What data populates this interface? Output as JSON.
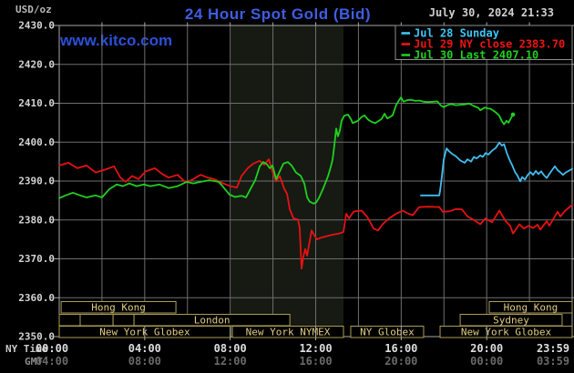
{
  "header": {
    "title": "24 Hour Spot Gold (Bid)",
    "datetime": "July 30, 2024 21:33",
    "watermark": "www.kitco.com"
  },
  "axis": {
    "unit_label": "USD/oz",
    "ny_row_label": "NY Time",
    "gmt_row_label": "GMT",
    "y_tick_labels": [
      "2430.0",
      "2420.0",
      "2410.0",
      "2400.0",
      "2390.0",
      "2380.0",
      "2370.0",
      "2360.0",
      "2350.0"
    ],
    "y_max": 2430,
    "y_min": 2350,
    "x_ticks": [
      {
        "hour": 0,
        "ny": "00:00",
        "gmt": "04:00"
      },
      {
        "hour": 4,
        "ny": "04:00",
        "gmt": "08:00"
      },
      {
        "hour": 8,
        "ny": "08:00",
        "gmt": "12:00"
      },
      {
        "hour": 12,
        "ny": "12:00",
        "gmt": "16:00"
      },
      {
        "hour": 16,
        "ny": "16:00",
        "gmt": "20:00"
      },
      {
        "hour": 20,
        "ny": "20:00",
        "gmt": "00:00"
      },
      {
        "hour": 23.983,
        "ny": "23:59",
        "gmt": "03:59"
      }
    ]
  },
  "legend": {
    "items": [
      {
        "label": "Jul 28 Sunday",
        "color": "#3ec6f5"
      },
      {
        "label": "Jul 29 NY close 2383.70",
        "color": "#f01414"
      },
      {
        "label": "Jul 30 Last 2407.10",
        "color": "#1fd11f"
      }
    ]
  },
  "sessions": {
    "rows": [
      {
        "boxes": [
          {
            "label": "Hong Kong",
            "start": 0.09,
            "end": 5.46
          },
          {
            "label": "Hong Kong",
            "start": 20.12,
            "end": 24
          }
        ]
      },
      {
        "boxes": [
          {
            "label": "",
            "start": 0,
            "end": 0.98
          },
          {
            "label": "",
            "start": 0.98,
            "end": 2.52
          },
          {
            "label": "",
            "start": 2.52,
            "end": 3.5
          },
          {
            "label": "London",
            "start": 3.5,
            "end": 10.79
          },
          {
            "label": "Sydney",
            "start": 18.76,
            "end": 23.53
          }
        ]
      },
      {
        "boxes": [
          {
            "label": "New York Globex",
            "start": 0,
            "end": 8.01
          },
          {
            "label": "New York NYMEX",
            "start": 8.1,
            "end": 13.3
          },
          {
            "label": "NY Globex",
            "start": 13.64,
            "end": 17.05
          },
          {
            "label": "New York Globex",
            "start": 17.82,
            "end": 24
          }
        ]
      }
    ]
  },
  "colors": {
    "background": "#000000",
    "grid": "#6e6e6e",
    "border": "#a8a8a8",
    "band": "#161a13",
    "title": "#3f5de2",
    "watermark": "#2b50d9",
    "datetime": "#d0d0d0",
    "unit_label": "#b8b8b8",
    "y_label": "#d4d4d4",
    "x_label": "#dedede",
    "gmt_label": "#6a6a6a",
    "ny_row_label": "#c9c9c9",
    "gmt_row_label": "#8c8c8c",
    "session_border": "#ab9d55",
    "session_text": "#e0cc84",
    "legend_border": "#909090"
  },
  "chart_data": {
    "type": "line",
    "title": "24 Hour Spot Gold (Bid)",
    "xlabel": "NY Time (hours 00:00-23:59)",
    "ylabel": "USD/oz",
    "ylim": [
      2350,
      2430
    ],
    "grid": true,
    "legend_position": "top-right",
    "nymex_band_hours": [
      8.03,
      13.3
    ],
    "series": [
      {
        "name": "Jul 28 Sunday",
        "color": "#41bdf0",
        "points": [
          [
            16.92,
            2386.3
          ],
          [
            17.78,
            2386.3
          ],
          [
            17.82,
            2387.5
          ],
          [
            17.9,
            2391.0
          ],
          [
            17.99,
            2395.5
          ],
          [
            18.12,
            2398.4
          ],
          [
            18.25,
            2397.6
          ],
          [
            18.38,
            2397.0
          ],
          [
            18.55,
            2396.4
          ],
          [
            18.76,
            2395.3
          ],
          [
            18.97,
            2394.7
          ],
          [
            19.1,
            2395.6
          ],
          [
            19.27,
            2395.0
          ],
          [
            19.4,
            2396.2
          ],
          [
            19.53,
            2395.8
          ],
          [
            19.7,
            2396.6
          ],
          [
            19.82,
            2396.2
          ],
          [
            19.95,
            2397.2
          ],
          [
            20.08,
            2396.8
          ],
          [
            20.25,
            2397.8
          ],
          [
            20.42,
            2398.5
          ],
          [
            20.59,
            2399.9
          ],
          [
            20.72,
            2399.1
          ],
          [
            20.81,
            2399.5
          ],
          [
            20.93,
            2397.4
          ],
          [
            21.06,
            2395.6
          ],
          [
            21.19,
            2394.1
          ],
          [
            21.32,
            2392.4
          ],
          [
            21.44,
            2391.4
          ],
          [
            21.57,
            2389.9
          ],
          [
            21.66,
            2391.0
          ],
          [
            21.79,
            2390.4
          ],
          [
            21.91,
            2391.5
          ],
          [
            22.04,
            2392.3
          ],
          [
            22.17,
            2391.6
          ],
          [
            22.3,
            2392.6
          ],
          [
            22.42,
            2391.8
          ],
          [
            22.55,
            2392.5
          ],
          [
            22.68,
            2391.5
          ],
          [
            22.81,
            2390.8
          ],
          [
            22.93,
            2391.8
          ],
          [
            23.06,
            2392.8
          ],
          [
            23.19,
            2393.8
          ],
          [
            23.32,
            2392.8
          ],
          [
            23.45,
            2392.2
          ],
          [
            23.57,
            2391.6
          ],
          [
            23.7,
            2392.2
          ],
          [
            23.83,
            2392.6
          ],
          [
            24,
            2393.1
          ]
        ]
      },
      {
        "name": "Jul 29 (NY close 2383.70)",
        "color": "#e81212",
        "points": [
          [
            0,
            2394.0
          ],
          [
            0.43,
            2394.7
          ],
          [
            0.85,
            2393.3
          ],
          [
            1.28,
            2394.0
          ],
          [
            1.7,
            2392.2
          ],
          [
            2.13,
            2392.9
          ],
          [
            2.56,
            2393.8
          ],
          [
            2.86,
            2390.9
          ],
          [
            3.11,
            2389.8
          ],
          [
            3.41,
            2391.3
          ],
          [
            3.71,
            2390.5
          ],
          [
            4.05,
            2392.5
          ],
          [
            4.48,
            2393.3
          ],
          [
            4.82,
            2391.8
          ],
          [
            5.12,
            2390.9
          ],
          [
            5.54,
            2391.6
          ],
          [
            5.88,
            2389.8
          ],
          [
            6.18,
            2390.2
          ],
          [
            6.61,
            2391.6
          ],
          [
            6.95,
            2390.9
          ],
          [
            7.25,
            2390.5
          ],
          [
            7.67,
            2389.4
          ],
          [
            8.01,
            2388.7
          ],
          [
            8.31,
            2388.3
          ],
          [
            8.53,
            2391.3
          ],
          [
            8.82,
            2393.3
          ],
          [
            9.08,
            2394.5
          ],
          [
            9.38,
            2395.2
          ],
          [
            9.59,
            2394.2
          ],
          [
            9.81,
            2395.6
          ],
          [
            9.98,
            2392.4
          ],
          [
            10.15,
            2389.9
          ],
          [
            10.32,
            2391.3
          ],
          [
            10.53,
            2388.0
          ],
          [
            10.66,
            2386.7
          ],
          [
            10.79,
            2382.7
          ],
          [
            10.96,
            2380.4
          ],
          [
            11.17,
            2380.1
          ],
          [
            11.25,
            2378.0
          ],
          [
            11.34,
            2367.5
          ],
          [
            11.42,
            2370.5
          ],
          [
            11.51,
            2372.5
          ],
          [
            11.6,
            2370.8
          ],
          [
            11.68,
            2373.4
          ],
          [
            11.81,
            2377.3
          ],
          [
            11.94,
            2376.0
          ],
          [
            12.06,
            2375.0
          ],
          [
            12.23,
            2375.4
          ],
          [
            12.49,
            2375.8
          ],
          [
            12.79,
            2376.2
          ],
          [
            13.09,
            2376.5
          ],
          [
            13.3,
            2376.9
          ],
          [
            13.43,
            2381.6
          ],
          [
            13.56,
            2380.4
          ],
          [
            13.77,
            2382.1
          ],
          [
            13.94,
            2382.3
          ],
          [
            14.15,
            2382.4
          ],
          [
            14.41,
            2380.8
          ],
          [
            14.71,
            2377.8
          ],
          [
            14.92,
            2377.3
          ],
          [
            15.13,
            2378.9
          ],
          [
            15.43,
            2380.4
          ],
          [
            15.77,
            2381.6
          ],
          [
            16.07,
            2382.4
          ],
          [
            16.33,
            2381.6
          ],
          [
            16.54,
            2381.2
          ],
          [
            16.84,
            2383.3
          ],
          [
            17.27,
            2383.4
          ],
          [
            17.78,
            2383.3
          ],
          [
            17.95,
            2382.1
          ],
          [
            18.25,
            2382.2
          ],
          [
            18.55,
            2382.8
          ],
          [
            18.84,
            2382.7
          ],
          [
            19.1,
            2380.9
          ],
          [
            19.4,
            2380.0
          ],
          [
            19.7,
            2378.9
          ],
          [
            19.95,
            2380.4
          ],
          [
            20.25,
            2379.4
          ],
          [
            20.59,
            2382.4
          ],
          [
            20.89,
            2379.7
          ],
          [
            21.1,
            2378.5
          ],
          [
            21.23,
            2376.5
          ],
          [
            21.53,
            2378.9
          ],
          [
            21.74,
            2377.8
          ],
          [
            21.96,
            2378.5
          ],
          [
            22.17,
            2377.9
          ],
          [
            22.38,
            2378.8
          ],
          [
            22.51,
            2377.5
          ],
          [
            22.81,
            2379.7
          ],
          [
            22.93,
            2378.5
          ],
          [
            23.32,
            2382.1
          ],
          [
            23.45,
            2380.9
          ],
          [
            23.66,
            2382.3
          ],
          [
            24,
            2383.9
          ]
        ]
      },
      {
        "name": "Jul 30 (Last 2407.10)",
        "color": "#1fd11f",
        "end_dot": true,
        "points": [
          [
            0,
            2385.6
          ],
          [
            0.3,
            2386.3
          ],
          [
            0.64,
            2387.0
          ],
          [
            0.98,
            2386.3
          ],
          [
            1.28,
            2385.8
          ],
          [
            1.7,
            2386.3
          ],
          [
            2.0,
            2385.8
          ],
          [
            2.34,
            2387.9
          ],
          [
            2.69,
            2389.1
          ],
          [
            2.98,
            2388.7
          ],
          [
            3.28,
            2389.4
          ],
          [
            3.62,
            2388.7
          ],
          [
            3.96,
            2389.1
          ],
          [
            4.26,
            2388.7
          ],
          [
            4.69,
            2389.1
          ],
          [
            5.12,
            2388.2
          ],
          [
            5.54,
            2388.7
          ],
          [
            5.97,
            2389.8
          ],
          [
            6.27,
            2389.4
          ],
          [
            6.61,
            2389.8
          ],
          [
            7.03,
            2390.2
          ],
          [
            7.46,
            2389.8
          ],
          [
            7.67,
            2388.5
          ],
          [
            7.97,
            2386.5
          ],
          [
            8.23,
            2385.9
          ],
          [
            8.53,
            2386.2
          ],
          [
            8.74,
            2385.8
          ],
          [
            8.95,
            2388.0
          ],
          [
            9.17,
            2390.2
          ],
          [
            9.38,
            2393.8
          ],
          [
            9.55,
            2394.9
          ],
          [
            9.72,
            2394.3
          ],
          [
            9.85,
            2393.3
          ],
          [
            9.98,
            2394.0
          ],
          [
            10.15,
            2390.5
          ],
          [
            10.32,
            2392.5
          ],
          [
            10.49,
            2394.5
          ],
          [
            10.7,
            2394.9
          ],
          [
            10.87,
            2394.0
          ],
          [
            11.08,
            2392.2
          ],
          [
            11.3,
            2391.3
          ],
          [
            11.47,
            2389.3
          ],
          [
            11.6,
            2385.8
          ],
          [
            11.72,
            2384.7
          ],
          [
            11.9,
            2384.2
          ],
          [
            12.02,
            2384.5
          ],
          [
            12.15,
            2385.6
          ],
          [
            12.36,
            2388.2
          ],
          [
            12.58,
            2391.3
          ],
          [
            12.7,
            2393.5
          ],
          [
            12.79,
            2395.5
          ],
          [
            12.87,
            2399.0
          ],
          [
            12.96,
            2403.5
          ],
          [
            13.04,
            2401.5
          ],
          [
            13.13,
            2403.0
          ],
          [
            13.21,
            2405.5
          ],
          [
            13.34,
            2406.8
          ],
          [
            13.51,
            2407.1
          ],
          [
            13.64,
            2406.0
          ],
          [
            13.73,
            2404.9
          ],
          [
            13.86,
            2405.2
          ],
          [
            13.98,
            2405.5
          ],
          [
            14.15,
            2406.5
          ],
          [
            14.28,
            2406.9
          ],
          [
            14.45,
            2405.8
          ],
          [
            14.62,
            2405.2
          ],
          [
            14.79,
            2404.9
          ],
          [
            14.96,
            2405.5
          ],
          [
            15.09,
            2406.0
          ],
          [
            15.22,
            2407.3
          ],
          [
            15.35,
            2406.1
          ],
          [
            15.48,
            2406.5
          ],
          [
            15.6,
            2406.9
          ],
          [
            15.77,
            2409.6
          ],
          [
            15.9,
            2410.8
          ],
          [
            15.99,
            2411.5
          ],
          [
            16.11,
            2410.4
          ],
          [
            16.28,
            2410.8
          ],
          [
            16.45,
            2410.9
          ],
          [
            16.67,
            2410.6
          ],
          [
            16.84,
            2410.7
          ],
          [
            17.05,
            2410.4
          ],
          [
            17.27,
            2410.3
          ],
          [
            17.48,
            2410.4
          ],
          [
            17.69,
            2410.5
          ],
          [
            17.86,
            2409.4
          ],
          [
            17.99,
            2409.0
          ],
          [
            18.16,
            2409.5
          ],
          [
            18.33,
            2409.8
          ],
          [
            18.55,
            2409.5
          ],
          [
            18.76,
            2409.6
          ],
          [
            18.97,
            2409.7
          ],
          [
            19.18,
            2409.9
          ],
          [
            19.4,
            2409.3
          ],
          [
            19.61,
            2408.8
          ],
          [
            19.7,
            2408.2
          ],
          [
            19.91,
            2408.9
          ],
          [
            20.04,
            2408.7
          ],
          [
            20.17,
            2408.6
          ],
          [
            20.34,
            2408.0
          ],
          [
            20.46,
            2407.5
          ],
          [
            20.59,
            2406.8
          ],
          [
            20.72,
            2405.3
          ],
          [
            20.81,
            2404.6
          ],
          [
            20.93,
            2405.5
          ],
          [
            21.02,
            2405.0
          ],
          [
            21.15,
            2406.3
          ],
          [
            21.23,
            2407.1
          ]
        ]
      }
    ]
  }
}
